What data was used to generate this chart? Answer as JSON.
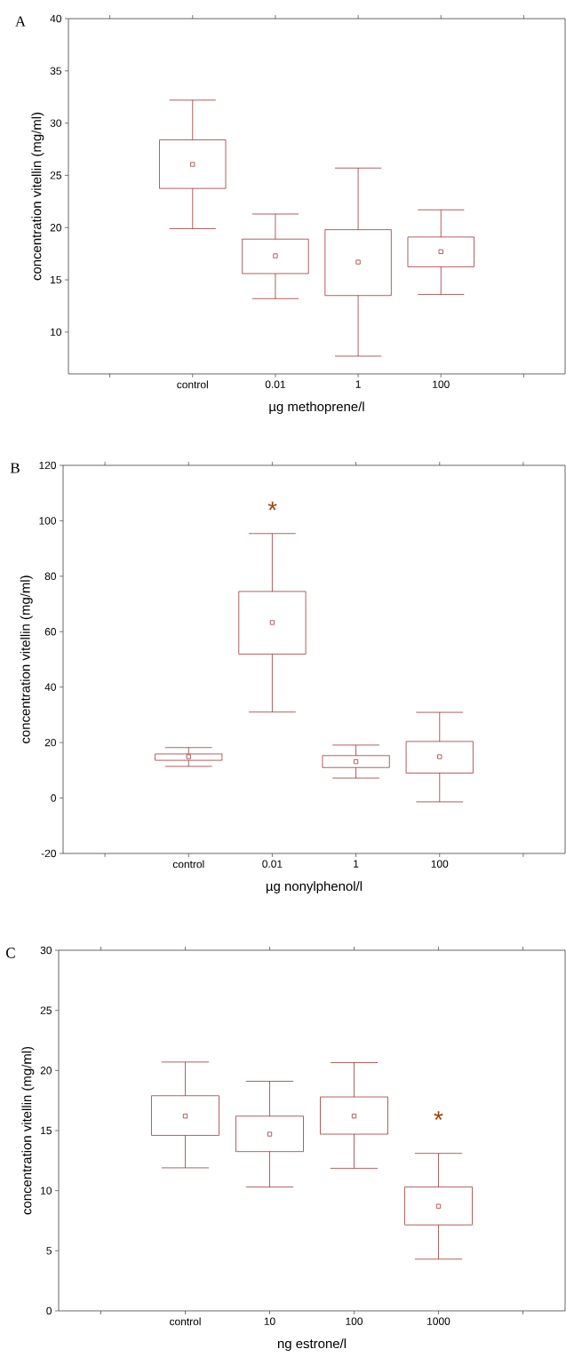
{
  "chart_data": [
    {
      "type": "box",
      "title": "A",
      "xlabel": "µg methoprene/l",
      "ylabel": "concentration vitellin (mg/ml)",
      "color": "#8c1c1c",
      "categories": [
        "control",
        "0.01",
        "1",
        "100"
      ],
      "boxes": [
        {
          "low": 19.9,
          "q1": 23.75,
          "median": 26.05,
          "q3": 28.4,
          "high": 32.2
        },
        {
          "low": 13.2,
          "q1": 15.6,
          "median": 17.3,
          "q3": 18.9,
          "high": 21.3
        },
        {
          "low": 7.7,
          "q1": 13.5,
          "median": 16.7,
          "q3": 19.8,
          "high": 25.7
        },
        {
          "low": 13.6,
          "q1": 16.25,
          "median": 17.7,
          "q3": 19.1,
          "high": 21.7
        }
      ],
      "ylim": [
        6,
        40
      ],
      "yticks": [
        10,
        15,
        20,
        25,
        30,
        35,
        40
      ]
    },
    {
      "type": "box",
      "title": "B",
      "xlabel": "µg nonylphenol/l",
      "ylabel": "concentration vitellin (mg/ml)",
      "color": "#8c1c1c",
      "categories": [
        "control",
        "0.01",
        "1",
        "100"
      ],
      "boxes": [
        {
          "low": 11.4,
          "q1": 13.6,
          "median": 14.9,
          "q3": 15.9,
          "high": 18.2
        },
        {
          "low": 31.0,
          "q1": 51.9,
          "median": 63.3,
          "q3": 74.5,
          "high": 95.4
        },
        {
          "low": 7.2,
          "q1": 11.0,
          "median": 13.1,
          "q3": 15.3,
          "high": 19.1
        },
        {
          "low": -1.4,
          "q1": 9.0,
          "median": 14.9,
          "q3": 20.4,
          "high": 30.9
        }
      ],
      "annotations": [
        "*"
      ],
      "ylim": [
        -20,
        120
      ],
      "yticks": [
        -20,
        0,
        20,
        40,
        60,
        80,
        100,
        120
      ]
    },
    {
      "type": "box",
      "title": "C",
      "xlabel": "ng estrone/l",
      "ylabel": "concentration vitellin (mg/ml)",
      "color": "#8c1c1c",
      "categories": [
        "control",
        "10",
        "100",
        "1000"
      ],
      "boxes": [
        {
          "low": 11.9,
          "q1": 14.6,
          "median": 16.2,
          "q3": 17.9,
          "high": 20.7
        },
        {
          "low": 10.3,
          "q1": 13.25,
          "median": 14.7,
          "q3": 16.2,
          "high": 19.1
        },
        {
          "low": 11.85,
          "q1": 14.7,
          "median": 16.2,
          "q3": 17.8,
          "high": 20.65
        },
        {
          "low": 4.3,
          "q1": 7.15,
          "median": 8.7,
          "q3": 10.3,
          "high": 13.1
        }
      ],
      "annotations": [
        "*"
      ],
      "ylim": [
        0,
        30
      ],
      "yticks": [
        0,
        5,
        10,
        15,
        20,
        25,
        30
      ]
    }
  ]
}
